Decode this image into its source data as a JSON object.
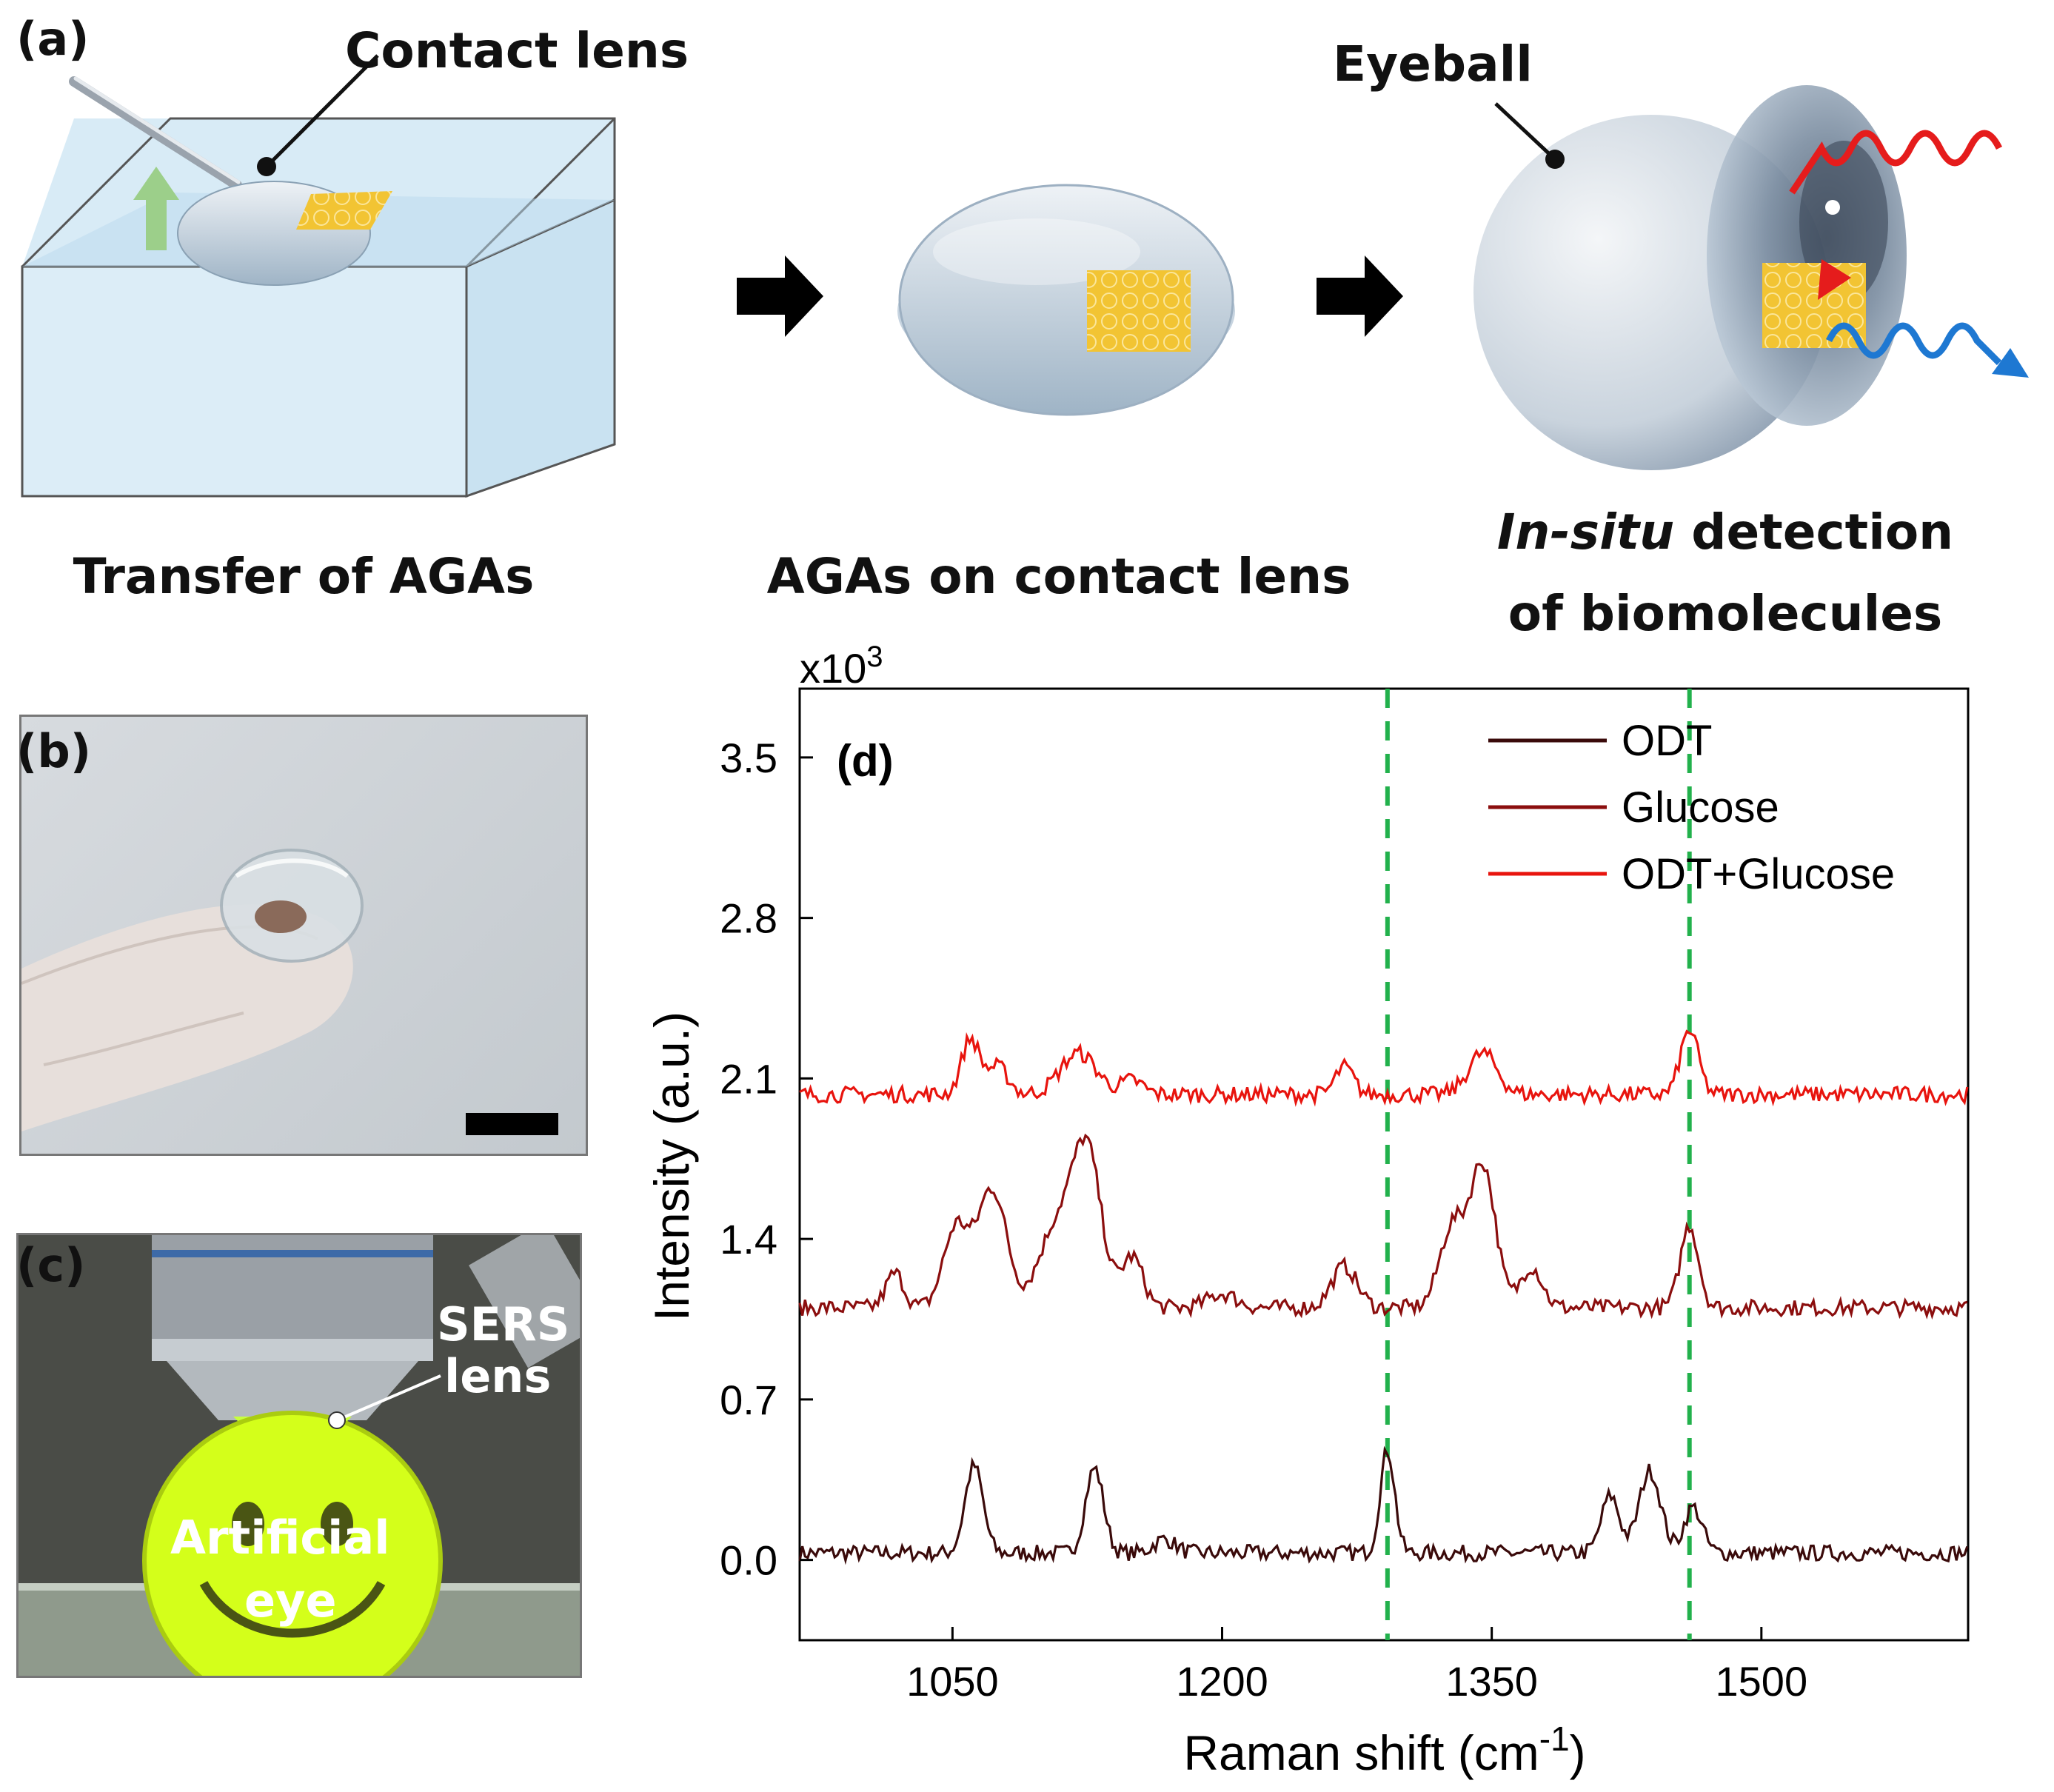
{
  "panel_a": {
    "label": "(a)",
    "contact_lens_label": "Contact lens",
    "eyeball_label": "Eyeball",
    "caption_transfer": "Transfer of AGAs",
    "caption_on_lens": "AGAs on contact lens",
    "caption_insitu_italic": "In-situ",
    "caption_insitu_rest": " detection",
    "caption_insitu_line2": "of biomolecules"
  },
  "panel_b": {
    "label": "(b)"
  },
  "panel_c": {
    "label": "(c)",
    "sers_line1": "SERS",
    "sers_line2": "lens",
    "eye_line1": "Artificial",
    "eye_line2": "eye"
  },
  "chart_data": {
    "type": "line",
    "panel_label": "(d)",
    "xlabel": "Raman shift (cm",
    "xlabel_sup": "-1",
    "xlabel_close": ")",
    "ylabel": "Intensity (a.u.)",
    "y_multiplier": "x10",
    "y_multiplier_sup": "3",
    "xlim": [
      965,
      1615
    ],
    "ylim": [
      -0.35,
      3.8
    ],
    "x_ticks": [
      1050,
      1200,
      1350,
      1500
    ],
    "y_ticks": [
      0.0,
      0.7,
      1.4,
      2.1,
      2.8,
      3.5
    ],
    "y_tick_labels": [
      "0.0",
      "0.7",
      "1.4",
      "2.1",
      "2.8",
      "3.5"
    ],
    "reference_lines_x": [
      1292,
      1460
    ],
    "reference_line_color": "#22b14c",
    "series": [
      {
        "name": "ODT",
        "color": "#3a0a0a",
        "baseline": 0.03,
        "peaks": [
          [
            1062,
            0.38,
            5
          ],
          [
            1129,
            0.37,
            5
          ],
          [
            1168,
            0.06,
            6
          ],
          [
            1292,
            0.45,
            4
          ],
          [
            1416,
            0.25,
            5
          ],
          [
            1438,
            0.36,
            6
          ],
          [
            1462,
            0.2,
            5
          ]
        ]
      },
      {
        "name": "Glucose",
        "color": "#8b0e0e",
        "baseline": 1.1,
        "peaks": [
          [
            1018,
            0.15,
            5
          ],
          [
            1052,
            0.35,
            7
          ],
          [
            1072,
            0.52,
            8
          ],
          [
            1108,
            0.35,
            10
          ],
          [
            1125,
            0.65,
            8
          ],
          [
            1150,
            0.22,
            6
          ],
          [
            1200,
            0.06,
            8
          ],
          [
            1268,
            0.18,
            7
          ],
          [
            1328,
            0.35,
            7
          ],
          [
            1345,
            0.62,
            7
          ],
          [
            1372,
            0.18,
            6
          ],
          [
            1460,
            0.36,
            5
          ]
        ]
      },
      {
        "name": "ODT+Glucose",
        "color": "#e8140e",
        "baseline": 2.03,
        "peaks": [
          [
            1060,
            0.24,
            5
          ],
          [
            1075,
            0.12,
            6
          ],
          [
            1120,
            0.18,
            10
          ],
          [
            1150,
            0.06,
            6
          ],
          [
            1268,
            0.12,
            5
          ],
          [
            1345,
            0.18,
            8
          ],
          [
            1460,
            0.28,
            5
          ]
        ]
      }
    ]
  }
}
